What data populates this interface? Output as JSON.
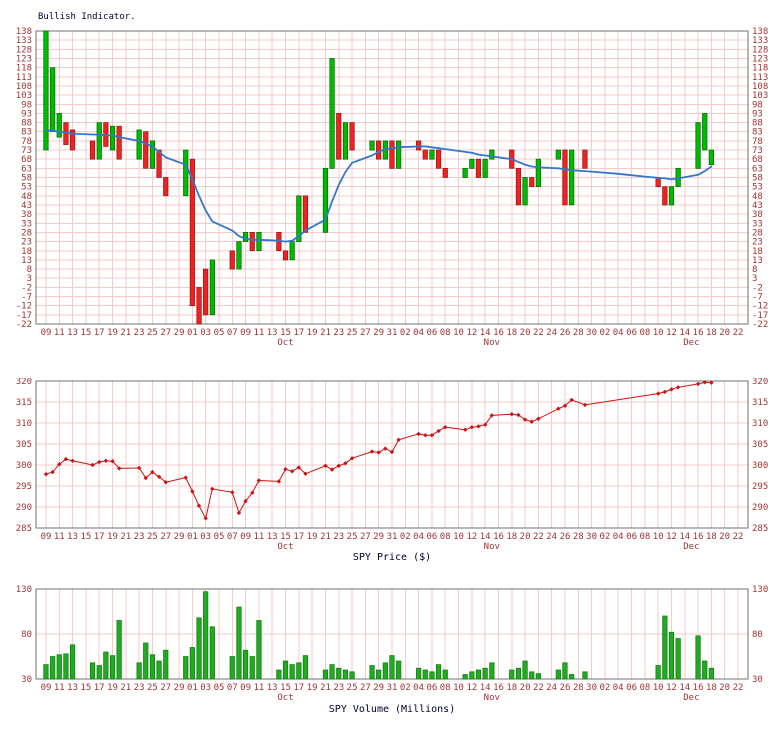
{
  "colors": {
    "grid": "#f6caca",
    "border": "#707070",
    "tick_label": "#a03434",
    "up": "#00bb00",
    "up_border": "#006600",
    "down": "#ee2222",
    "down_border": "#991111",
    "ma_line": "#3377cc",
    "price_line": "#cc1111",
    "volume_bar": "#22aa22",
    "volume_bar_border": "#0e7a0e",
    "title": "#000033"
  },
  "x_axis": {
    "domain": [
      -1.5,
      105.5
    ],
    "ticks": [
      [
        "09",
        0
      ],
      [
        "11",
        2
      ],
      [
        "13",
        4
      ],
      [
        "15",
        6
      ],
      [
        "17",
        8
      ],
      [
        "19",
        10
      ],
      [
        "21",
        12
      ],
      [
        "23",
        14
      ],
      [
        "25",
        16
      ],
      [
        "27",
        18
      ],
      [
        "29",
        20
      ],
      [
        "01",
        22
      ],
      [
        "03",
        24
      ],
      [
        "05",
        26
      ],
      [
        "07",
        28
      ],
      [
        "09",
        30
      ],
      [
        "11",
        32
      ],
      [
        "13",
        34
      ],
      [
        "15",
        36
      ],
      [
        "17",
        38
      ],
      [
        "19",
        40
      ],
      [
        "21",
        42
      ],
      [
        "23",
        44
      ],
      [
        "25",
        46
      ],
      [
        "27",
        48
      ],
      [
        "29",
        50
      ],
      [
        "31",
        52
      ],
      [
        "02",
        54
      ],
      [
        "04",
        56
      ],
      [
        "06",
        58
      ],
      [
        "08",
        60
      ],
      [
        "10",
        62
      ],
      [
        "12",
        64
      ],
      [
        "14",
        66
      ],
      [
        "16",
        68
      ],
      [
        "18",
        70
      ],
      [
        "20",
        72
      ],
      [
        "22",
        74
      ],
      [
        "24",
        76
      ],
      [
        "26",
        78
      ],
      [
        "28",
        80
      ],
      [
        "30",
        82
      ],
      [
        "02",
        84
      ],
      [
        "04",
        86
      ],
      [
        "06",
        88
      ],
      [
        "08",
        90
      ],
      [
        "10",
        92
      ],
      [
        "12",
        94
      ],
      [
        "14",
        96
      ],
      [
        "16",
        98
      ],
      [
        "18",
        100
      ],
      [
        "20",
        102
      ],
      [
        "22",
        104
      ]
    ],
    "months": [
      [
        "Oct",
        36
      ],
      [
        "Nov",
        67
      ],
      [
        "Dec",
        97
      ]
    ]
  },
  "chart_data": [
    {
      "type": "candlestick",
      "title": "Bullish Indicator.",
      "ylim": [
        -22,
        138
      ],
      "ytick_step": 5,
      "grid": true,
      "bars": [
        [
          0,
          73,
          138
        ],
        [
          1,
          83,
          118
        ],
        [
          2,
          80,
          93
        ],
        [
          3,
          88,
          76
        ],
        [
          4,
          84,
          73
        ],
        [
          7,
          78,
          68
        ],
        [
          8,
          68,
          88
        ],
        [
          9,
          88,
          75
        ],
        [
          10,
          73,
          86
        ],
        [
          11,
          86,
          68
        ],
        [
          14,
          68,
          84
        ],
        [
          15,
          83,
          63
        ],
        [
          16,
          63,
          78
        ],
        [
          17,
          73,
          58
        ],
        [
          18,
          58,
          48
        ],
        [
          21,
          48,
          73
        ],
        [
          22,
          68,
          -12
        ],
        [
          23,
          -2,
          -22
        ],
        [
          24,
          8,
          -17
        ],
        [
          25,
          -17,
          13
        ],
        [
          28,
          18,
          8
        ],
        [
          29,
          8,
          23
        ],
        [
          30,
          23,
          28
        ],
        [
          31,
          28,
          18
        ],
        [
          32,
          18,
          28
        ],
        [
          35,
          28,
          18
        ],
        [
          36,
          18,
          13
        ],
        [
          37,
          13,
          23
        ],
        [
          38,
          23,
          48
        ],
        [
          39,
          48,
          28
        ],
        [
          42,
          28,
          63
        ],
        [
          43,
          63,
          123
        ],
        [
          44,
          93,
          68
        ],
        [
          45,
          68,
          88
        ],
        [
          46,
          88,
          73
        ],
        [
          49,
          73,
          78
        ],
        [
          50,
          78,
          68
        ],
        [
          51,
          68,
          78
        ],
        [
          52,
          78,
          63
        ],
        [
          53,
          63,
          78
        ],
        [
          56,
          78,
          73
        ],
        [
          57,
          73,
          68
        ],
        [
          58,
          68,
          73
        ],
        [
          59,
          73,
          63
        ],
        [
          60,
          63,
          58
        ],
        [
          63,
          58,
          63
        ],
        [
          64,
          63,
          68
        ],
        [
          65,
          68,
          58
        ],
        [
          66,
          58,
          68
        ],
        [
          67,
          68,
          73
        ],
        [
          70,
          73,
          63
        ],
        [
          71,
          63,
          43
        ],
        [
          72,
          43,
          58
        ],
        [
          73,
          58,
          53
        ],
        [
          74,
          53,
          68
        ],
        [
          77,
          68,
          73
        ],
        [
          78,
          73,
          43
        ],
        [
          79,
          43,
          73
        ],
        [
          81,
          73,
          63
        ],
        [
          92,
          58,
          53
        ],
        [
          93,
          53,
          43
        ],
        [
          94,
          43,
          53
        ],
        [
          95,
          53,
          63
        ],
        [
          98,
          63,
          88
        ],
        [
          99,
          73,
          93
        ],
        [
          100,
          65,
          73
        ]
      ],
      "ma_line": [
        [
          0,
          84
        ],
        [
          1,
          83.5
        ],
        [
          2,
          83
        ],
        [
          3,
          82.5
        ],
        [
          4,
          82
        ],
        [
          7,
          81.5
        ],
        [
          8,
          81.5
        ],
        [
          9,
          81
        ],
        [
          10,
          81
        ],
        [
          11,
          80
        ],
        [
          14,
          78
        ],
        [
          15,
          76.5
        ],
        [
          16,
          75
        ],
        [
          17,
          72
        ],
        [
          18,
          69
        ],
        [
          21,
          65
        ],
        [
          22,
          57
        ],
        [
          23,
          48
        ],
        [
          24,
          40
        ],
        [
          25,
          34
        ],
        [
          28,
          29
        ],
        [
          29,
          26
        ],
        [
          30,
          24.5
        ],
        [
          31,
          24
        ],
        [
          32,
          24
        ],
        [
          35,
          23.5
        ],
        [
          36,
          23
        ],
        [
          37,
          23.5
        ],
        [
          38,
          26
        ],
        [
          39,
          29
        ],
        [
          42,
          35
        ],
        [
          43,
          45
        ],
        [
          44,
          54
        ],
        [
          45,
          61
        ],
        [
          46,
          66
        ],
        [
          49,
          70
        ],
        [
          50,
          72
        ],
        [
          51,
          73.5
        ],
        [
          52,
          74
        ],
        [
          53,
          74.5
        ],
        [
          56,
          75
        ],
        [
          57,
          75
        ],
        [
          58,
          74.5
        ],
        [
          59,
          74
        ],
        [
          60,
          73.5
        ],
        [
          63,
          72
        ],
        [
          64,
          71.5
        ],
        [
          65,
          70.5
        ],
        [
          66,
          70
        ],
        [
          67,
          69.5
        ],
        [
          70,
          68
        ],
        [
          71,
          66.5
        ],
        [
          72,
          65
        ],
        [
          73,
          64
        ],
        [
          74,
          63.5
        ],
        [
          77,
          63
        ],
        [
          78,
          62.5
        ],
        [
          79,
          62
        ],
        [
          81,
          61.5
        ],
        [
          86,
          60
        ],
        [
          90,
          58.5
        ],
        [
          93,
          57.5
        ],
        [
          94,
          57
        ],
        [
          95,
          57.5
        ],
        [
          98,
          59.5
        ],
        [
          99,
          61.5
        ],
        [
          100,
          64
        ]
      ]
    },
    {
      "type": "line",
      "xlabel": "SPY Price ($)",
      "ylim": [
        285,
        320
      ],
      "ytick_step": 5,
      "grid": true,
      "points": [
        [
          0,
          297.8
        ],
        [
          1,
          298.3
        ],
        [
          2,
          300.2
        ],
        [
          3,
          301.4
        ],
        [
          4,
          301.0
        ],
        [
          7,
          300.0
        ],
        [
          8,
          300.7
        ],
        [
          9,
          301.0
        ],
        [
          10,
          300.9
        ],
        [
          11,
          299.2
        ],
        [
          14,
          299.3
        ],
        [
          15,
          296.9
        ],
        [
          16,
          298.3
        ],
        [
          17,
          297.2
        ],
        [
          18,
          295.9
        ],
        [
          21,
          297.0
        ],
        [
          22,
          293.7
        ],
        [
          23,
          290.3
        ],
        [
          24,
          287.3
        ],
        [
          25,
          294.3
        ],
        [
          28,
          293.5
        ],
        [
          29,
          288.6
        ],
        [
          30,
          291.4
        ],
        [
          31,
          293.4
        ],
        [
          32,
          296.3
        ],
        [
          35,
          296.1
        ],
        [
          36,
          299.0
        ],
        [
          37,
          298.5
        ],
        [
          38,
          299.4
        ],
        [
          39,
          297.9
        ],
        [
          42,
          299.8
        ],
        [
          43,
          298.9
        ],
        [
          44,
          299.8
        ],
        [
          45,
          300.4
        ],
        [
          46,
          301.6
        ],
        [
          49,
          303.2
        ],
        [
          50,
          303.0
        ],
        [
          51,
          303.9
        ],
        [
          52,
          303.1
        ],
        [
          53,
          306.0
        ],
        [
          56,
          307.4
        ],
        [
          57,
          307.1
        ],
        [
          58,
          307.1
        ],
        [
          59,
          308.1
        ],
        [
          60,
          309.0
        ],
        [
          63,
          308.4
        ],
        [
          64,
          309.0
        ],
        [
          65,
          309.2
        ],
        [
          66,
          309.6
        ],
        [
          67,
          311.8
        ],
        [
          70,
          312.1
        ],
        [
          71,
          311.9
        ],
        [
          72,
          310.8
        ],
        [
          73,
          310.3
        ],
        [
          74,
          311.0
        ],
        [
          77,
          313.4
        ],
        [
          78,
          314.1
        ],
        [
          79,
          315.5
        ],
        [
          81,
          314.3
        ],
        [
          92,
          317.0
        ],
        [
          93,
          317.4
        ],
        [
          94,
          318.0
        ],
        [
          95,
          318.5
        ],
        [
          98,
          319.3
        ],
        [
          99,
          319.7
        ],
        [
          100,
          319.6
        ]
      ]
    },
    {
      "type": "bar",
      "xlabel": "SPY Volume (Millions)",
      "ylim": [
        30,
        130
      ],
      "ytick_step": 50,
      "grid": true,
      "points": [
        [
          0,
          46
        ],
        [
          1,
          55
        ],
        [
          2,
          57
        ],
        [
          3,
          58
        ],
        [
          4,
          68
        ],
        [
          7,
          48
        ],
        [
          8,
          45
        ],
        [
          9,
          60
        ],
        [
          10,
          56
        ],
        [
          11,
          95
        ],
        [
          14,
          48
        ],
        [
          15,
          70
        ],
        [
          16,
          57
        ],
        [
          17,
          50
        ],
        [
          18,
          62
        ],
        [
          21,
          55
        ],
        [
          22,
          65
        ],
        [
          23,
          98
        ],
        [
          24,
          127
        ],
        [
          25,
          88
        ],
        [
          28,
          55
        ],
        [
          29,
          110
        ],
        [
          30,
          62
        ],
        [
          31,
          55
        ],
        [
          32,
          95
        ],
        [
          35,
          40
        ],
        [
          36,
          50
        ],
        [
          37,
          46
        ],
        [
          38,
          48
        ],
        [
          39,
          56
        ],
        [
          42,
          40
        ],
        [
          43,
          46
        ],
        [
          44,
          42
        ],
        [
          45,
          40
        ],
        [
          46,
          38
        ],
        [
          49,
          45
        ],
        [
          50,
          40
        ],
        [
          51,
          48
        ],
        [
          52,
          56
        ],
        [
          53,
          50
        ],
        [
          56,
          42
        ],
        [
          57,
          40
        ],
        [
          58,
          38
        ],
        [
          59,
          46
        ],
        [
          60,
          40
        ],
        [
          63,
          35
        ],
        [
          64,
          38
        ],
        [
          65,
          40
        ],
        [
          66,
          42
        ],
        [
          67,
          48
        ],
        [
          70,
          40
        ],
        [
          71,
          42
        ],
        [
          72,
          50
        ],
        [
          73,
          38
        ],
        [
          74,
          36
        ],
        [
          77,
          40
        ],
        [
          78,
          48
        ],
        [
          79,
          35
        ],
        [
          81,
          38
        ],
        [
          92,
          45
        ],
        [
          93,
          100
        ],
        [
          94,
          82
        ],
        [
          95,
          75
        ],
        [
          98,
          78
        ],
        [
          99,
          50
        ],
        [
          100,
          42
        ]
      ]
    }
  ]
}
